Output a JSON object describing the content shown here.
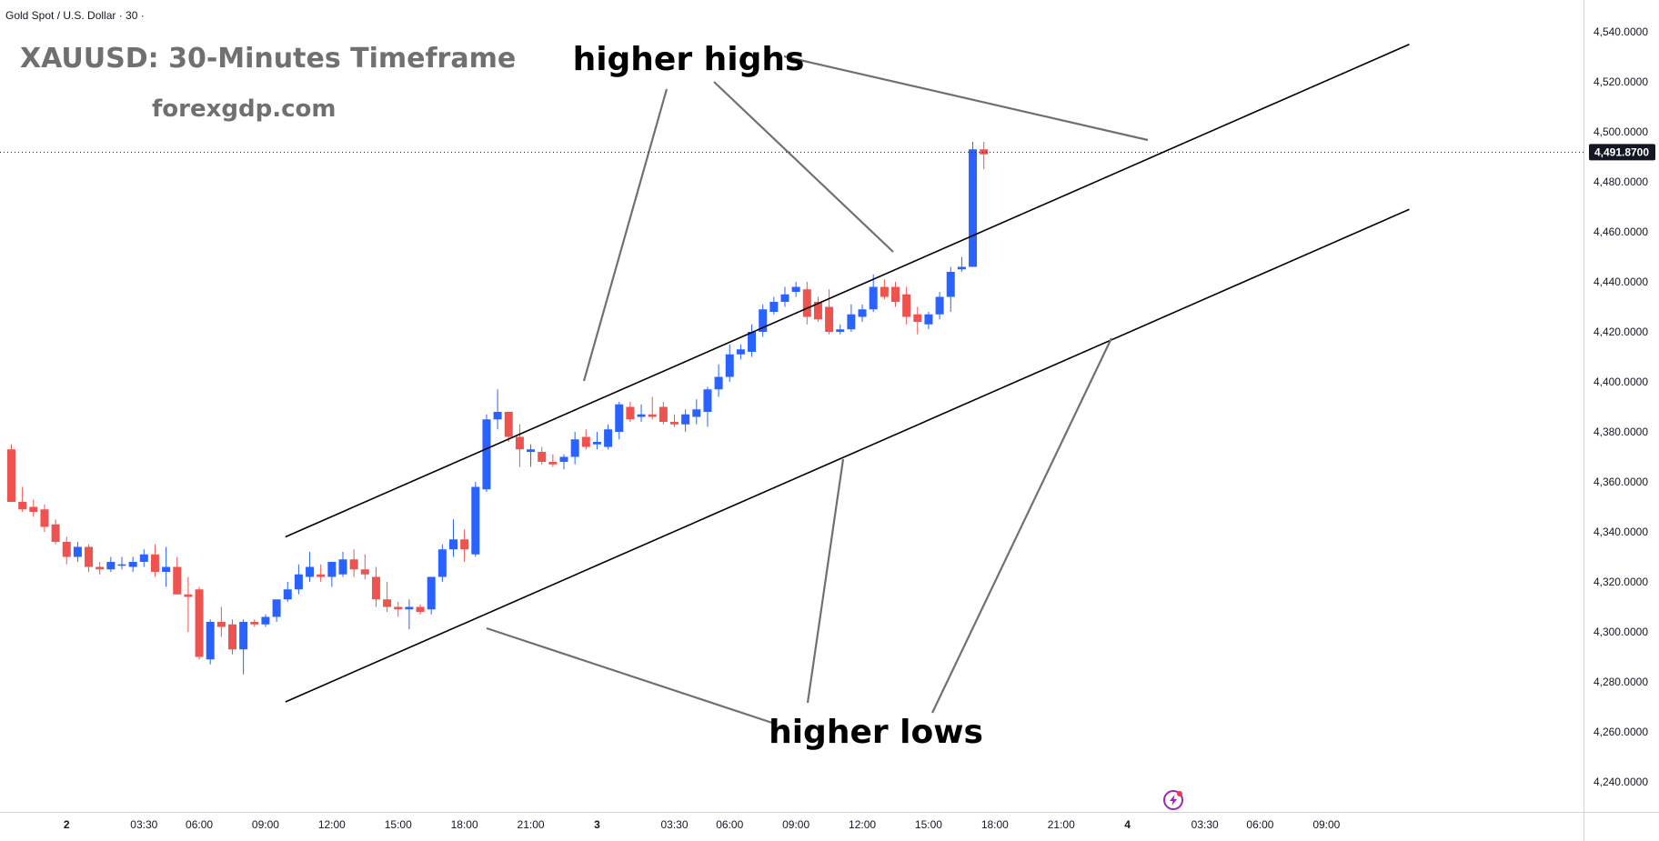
{
  "symbol_line": "Gold Spot / U.S. Dollar · 30 ·",
  "title": "XAUUSD: 30-Minutes Timeframe",
  "website": "forexgdp.com",
  "annotations": {
    "higher_highs": "higher highs",
    "higher_lows": "higher lows"
  },
  "current_price": {
    "label": "4,491.8700",
    "value": 4491.87
  },
  "colors": {
    "up": "#2962ff",
    "down": "#ef5350",
    "price_tag_bg": "#131722",
    "channel": "#000000",
    "annotation_line": "#707070"
  },
  "icons": {
    "flash": "lightning-icon"
  },
  "chart_data": {
    "type": "candlestick",
    "title": "XAUUSD: 30-Minutes Timeframe",
    "ylim": [
      4230,
      4550
    ],
    "y_ticks": [
      "4,540.0000",
      "4,520.0000",
      "4,500.0000",
      "4,480.0000",
      "4,460.0000",
      "4,440.0000",
      "4,420.0000",
      "4,400.0000",
      "4,380.0000",
      "4,360.0000",
      "4,340.0000",
      "4,320.0000",
      "4,300.0000",
      "4,280.0000",
      "4,260.0000",
      "4,240.0000"
    ],
    "y_tick_values": [
      4540,
      4520,
      4500,
      4480,
      4460,
      4440,
      4420,
      4400,
      4380,
      4360,
      4340,
      4320,
      4300,
      4280,
      4260,
      4240
    ],
    "x_ticks": [
      {
        "label": "2",
        "index": 5,
        "bold": true
      },
      {
        "label": "03:30",
        "index": 12
      },
      {
        "label": "06:00",
        "index": 17
      },
      {
        "label": "09:00",
        "index": 23
      },
      {
        "label": "12:00",
        "index": 29
      },
      {
        "label": "15:00",
        "index": 35
      },
      {
        "label": "18:00",
        "index": 41
      },
      {
        "label": "21:00",
        "index": 47
      },
      {
        "label": "3",
        "index": 53,
        "bold": true
      },
      {
        "label": "03:30",
        "index": 60
      },
      {
        "label": "06:00",
        "index": 65
      },
      {
        "label": "09:00",
        "index": 71
      },
      {
        "label": "12:00",
        "index": 77
      },
      {
        "label": "15:00",
        "index": 83
      },
      {
        "label": "18:00",
        "index": 89
      },
      {
        "label": "21:00",
        "index": 95
      },
      {
        "label": "4",
        "index": 101,
        "bold": true
      },
      {
        "label": "03:30",
        "index": 108
      },
      {
        "label": "06:00",
        "index": 113
      },
      {
        "label": "09:00",
        "index": 119
      }
    ],
    "candles": [
      [
        4373,
        4375,
        4352,
        4352
      ],
      [
        4352,
        4358,
        4348,
        4349
      ],
      [
        4350,
        4353,
        4346,
        4348
      ],
      [
        4349,
        4351,
        4340,
        4342
      ],
      [
        4343,
        4345,
        4335,
        4336
      ],
      [
        4336,
        4338,
        4327,
        4330
      ],
      [
        4330,
        4336,
        4328,
        4334
      ],
      [
        4334,
        4335,
        4324,
        4326
      ],
      [
        4326,
        4328,
        4323,
        4325
      ],
      [
        4325,
        4330,
        4324,
        4328
      ],
      [
        4327,
        4330,
        4325,
        4327
      ],
      [
        4326,
        4330,
        4324,
        4328
      ],
      [
        4328,
        4333,
        4326,
        4331
      ],
      [
        4331,
        4335,
        4322,
        4324
      ],
      [
        4324,
        4334,
        4318,
        4326
      ],
      [
        4326,
        4330,
        4315,
        4315
      ],
      [
        4315,
        4322,
        4300,
        4314
      ],
      [
        4317,
        4318,
        4289,
        4290
      ],
      [
        4289,
        4305,
        4287,
        4304
      ],
      [
        4304,
        4310,
        4298,
        4302
      ],
      [
        4303,
        4305,
        4291,
        4293
      ],
      [
        4293,
        4305,
        4283,
        4304
      ],
      [
        4304,
        4305,
        4302,
        4303
      ],
      [
        4303,
        4307,
        4302,
        4306
      ],
      [
        4306,
        4311,
        4304,
        4313
      ],
      [
        4313,
        4320,
        4312,
        4317
      ],
      [
        4317,
        4327,
        4315,
        4323
      ],
      [
        4322,
        4332,
        4320,
        4326
      ],
      [
        4323,
        4327,
        4320,
        4322
      ],
      [
        4322,
        4326,
        4318,
        4328
      ],
      [
        4323,
        4332,
        4322,
        4329
      ],
      [
        4329,
        4333,
        4322,
        4325
      ],
      [
        4325,
        4331,
        4321,
        4323
      ],
      [
        4322,
        4326,
        4310,
        4313
      ],
      [
        4313,
        4320,
        4308,
        4310
      ],
      [
        4310,
        4312,
        4306,
        4309
      ],
      [
        4309,
        4313,
        4301,
        4310
      ],
      [
        4310,
        4311,
        4307,
        4308
      ],
      [
        4309,
        4321,
        4307,
        4322
      ],
      [
        4322,
        4335,
        4320,
        4333
      ],
      [
        4333,
        4345,
        4330,
        4337
      ],
      [
        4337,
        4341,
        4328,
        4333
      ],
      [
        4331,
        4360,
        4330,
        4358
      ],
      [
        4357,
        4387,
        4356,
        4385
      ],
      [
        4385,
        4397,
        4381,
        4388
      ],
      [
        4388,
        4388,
        4376,
        4378
      ],
      [
        4378,
        4383,
        4366,
        4373
      ],
      [
        4372,
        4375,
        4366,
        4373
      ],
      [
        4372,
        4374,
        4367,
        4368
      ],
      [
        4368,
        4371,
        4366,
        4367
      ],
      [
        4368,
        4371,
        4365,
        4370
      ],
      [
        4370,
        4380,
        4367,
        4377
      ],
      [
        4378,
        4381,
        4373,
        4374
      ],
      [
        4375,
        4380,
        4373,
        4376
      ],
      [
        4374,
        4383,
        4373,
        4381
      ],
      [
        4380,
        4392,
        4377,
        4391
      ],
      [
        4390,
        4392,
        4384,
        4385
      ],
      [
        4386,
        4391,
        4384,
        4387
      ],
      [
        4387,
        4394,
        4385,
        4386
      ],
      [
        4390,
        4392,
        4383,
        4384
      ],
      [
        4384,
        4387,
        4382,
        4383
      ],
      [
        4383,
        4389,
        4380,
        4387
      ],
      [
        4386,
        4393,
        4383,
        4389
      ],
      [
        4388,
        4398,
        4382,
        4397
      ],
      [
        4397,
        4407,
        4394,
        4402
      ],
      [
        4402,
        4415,
        4400,
        4411
      ],
      [
        4411,
        4415,
        4409,
        4413
      ],
      [
        4412,
        4423,
        4410,
        4420
      ],
      [
        4420,
        4431,
        4418,
        4429
      ],
      [
        4428,
        4434,
        4427,
        4432
      ],
      [
        4432,
        4438,
        4430,
        4435
      ],
      [
        4436,
        4440,
        4434,
        4438
      ],
      [
        4437,
        4440,
        4423,
        4426
      ],
      [
        4432,
        4434,
        4424,
        4425
      ],
      [
        4430,
        4437,
        4419,
        4420
      ],
      [
        4420,
        4423,
        4419,
        4421
      ],
      [
        4421,
        4431,
        4420,
        4427
      ],
      [
        4426,
        4431,
        4424,
        4429
      ],
      [
        4429,
        4443,
        4428,
        4438
      ],
      [
        4438,
        4441,
        4433,
        4434
      ],
      [
        4438,
        4440,
        4430,
        4432
      ],
      [
        4435,
        4438,
        4423,
        4426
      ],
      [
        4427,
        4430,
        4419,
        4424
      ],
      [
        4423,
        4428,
        4421,
        4427
      ],
      [
        4427,
        4436,
        4425,
        4434
      ],
      [
        4434,
        4446,
        4428,
        4444
      ],
      [
        4445,
        4450,
        4444,
        4446
      ],
      [
        4446,
        4496,
        4446,
        4493
      ],
      [
        4493,
        4496,
        4485,
        4491
      ]
    ],
    "channel": {
      "upper": [
        [
          24.8,
          4338
        ],
        [
          126.5,
          4535
        ]
      ],
      "lower": [
        [
          24.8,
          4272
        ],
        [
          126.5,
          4469
        ]
      ]
    }
  }
}
